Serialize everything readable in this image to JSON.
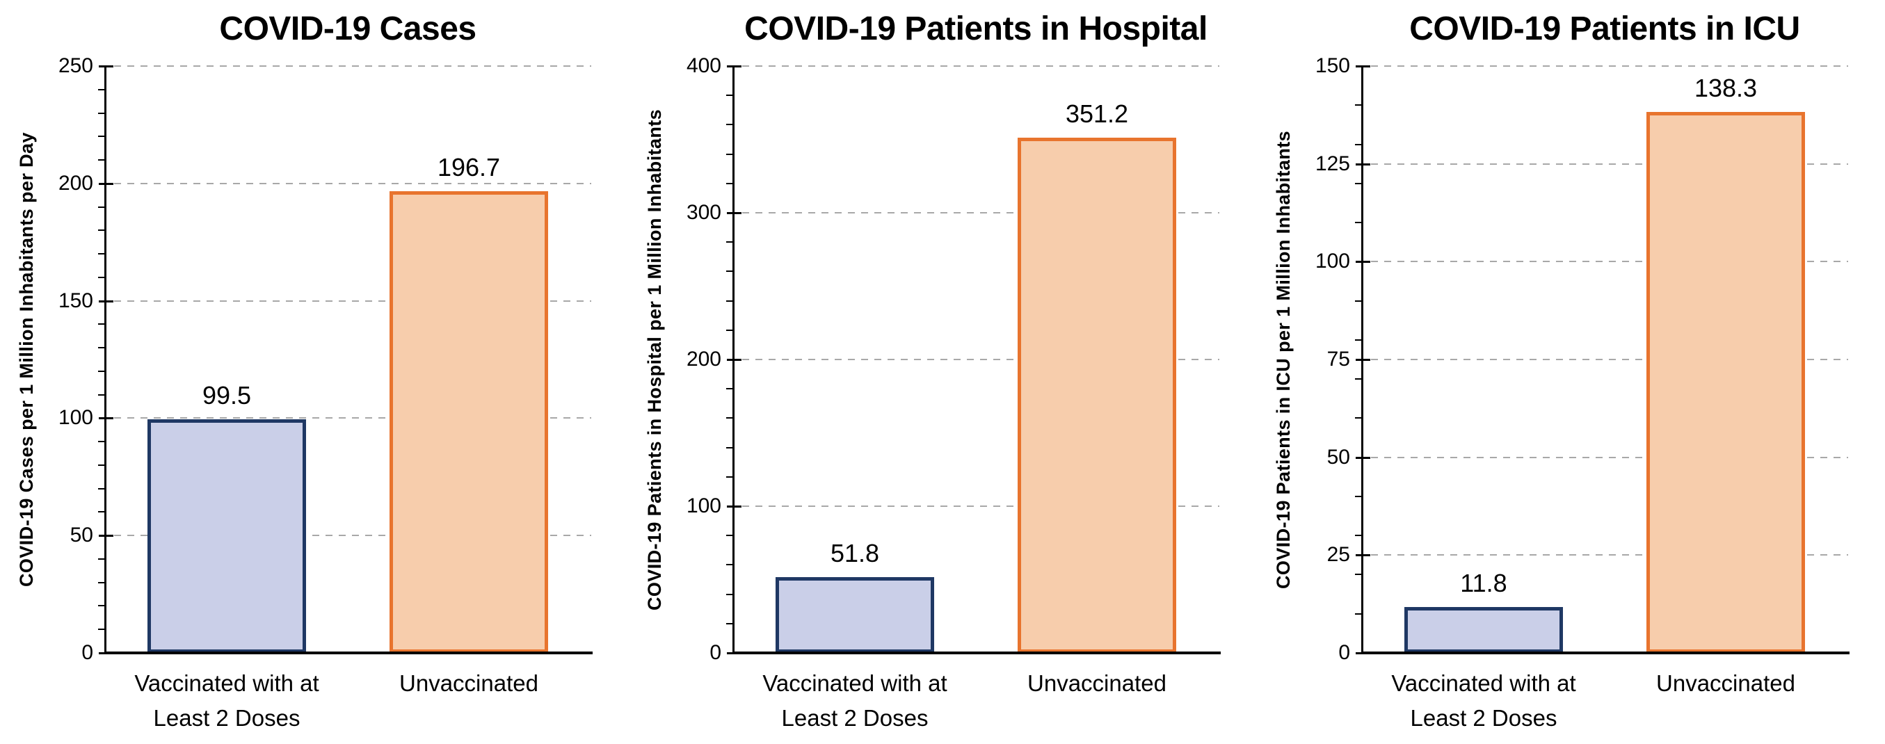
{
  "page": {
    "background": "#FFFFFF"
  },
  "colors": {
    "vaccinated_fill": "#CACFE8",
    "vaccinated_border": "#1F3864",
    "unvaccinated_fill": "#F7CDAC",
    "unvaccinated_border": "#E8742E",
    "gridline": "#A8A8A8",
    "axis": "#000000",
    "text": "#000000"
  },
  "chart_data": [
    {
      "type": "bar",
      "title": "COVID-19 Cases",
      "ylabel": "COVID-19 Cases per 1 Million Inhabitants per Day",
      "xlabel": "",
      "categories": [
        "Vaccinated with at\nLeast 2 Doses",
        "Unvaccinated"
      ],
      "values": [
        99.5,
        196.7
      ],
      "value_labels": [
        "99.5",
        "196.7"
      ],
      "ylim": [
        0,
        250
      ],
      "ytick_major_interval": 50,
      "ytick_minor_interval": 10,
      "ytick_labels": [
        "0",
        "50",
        "100",
        "150",
        "200",
        "250"
      ],
      "grid": {
        "horizontal": true,
        "style": "dashed",
        "at": "major ticks"
      },
      "legend": "none",
      "bar_colors": [
        {
          "fill": "#CACFE8",
          "stroke": "#1F3864"
        },
        {
          "fill": "#F7CDAC",
          "stroke": "#E8742E"
        }
      ]
    },
    {
      "type": "bar",
      "title": "COVID-19 Patients in Hospital",
      "ylabel": "COVID-19 Patients in Hospital per 1 Million Inhabitants",
      "xlabel": "",
      "categories": [
        "Vaccinated with at\nLeast 2 Doses",
        "Unvaccinated"
      ],
      "values": [
        51.8,
        351.2
      ],
      "value_labels": [
        "51.8",
        "351.2"
      ],
      "ylim": [
        0,
        400
      ],
      "ytick_major_interval": 100,
      "ytick_minor_interval": 20,
      "ytick_labels": [
        "0",
        "100",
        "200",
        "300",
        "400"
      ],
      "grid": {
        "horizontal": true,
        "style": "dashed",
        "at": "major ticks"
      },
      "legend": "none",
      "bar_colors": [
        {
          "fill": "#CACFE8",
          "stroke": "#1F3864"
        },
        {
          "fill": "#F7CDAC",
          "stroke": "#E8742E"
        }
      ]
    },
    {
      "type": "bar",
      "title": "COVID-19 Patients in ICU",
      "ylabel": "COVID-19 Patients in ICU  per 1 Million Inhabitants",
      "xlabel": "",
      "categories": [
        "Vaccinated with at\nLeast 2 Doses",
        "Unvaccinated"
      ],
      "values": [
        11.8,
        138.3
      ],
      "value_labels": [
        "11.8",
        "138.3"
      ],
      "ylim": [
        0,
        150
      ],
      "ytick_major_interval": 25,
      "ytick_minor_interval": 10,
      "ytick_labels": [
        "0",
        "25",
        "50",
        "75",
        "100",
        "125",
        "150"
      ],
      "grid": {
        "horizontal": true,
        "style": "dashed",
        "at": "major ticks"
      },
      "legend": "none",
      "bar_colors": [
        {
          "fill": "#CACFE8",
          "stroke": "#1F3864"
        },
        {
          "fill": "#F7CDAC",
          "stroke": "#E8742E"
        }
      ]
    }
  ]
}
